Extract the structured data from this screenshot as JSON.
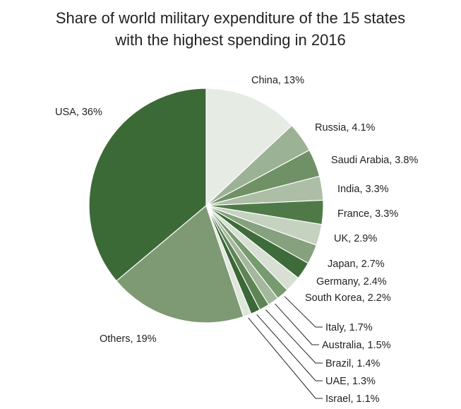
{
  "chart_data": {
    "type": "pie",
    "title": [
      "Share of world military expenditure of the 15 states",
      "with the highest spending in 2016"
    ],
    "slices": [
      {
        "label": "China, 13%",
        "name": "China",
        "value": 13,
        "color": "#e6ebe3"
      },
      {
        "label": "Russia, 4.1%",
        "name": "Russia",
        "value": 4.1,
        "color": "#9cb294"
      },
      {
        "label": "Saudi Arabia, 3.8%",
        "name": "Saudi Arabia",
        "value": 3.8,
        "color": "#6f9165"
      },
      {
        "label": "India, 3.3%",
        "name": "India",
        "value": 3.3,
        "color": "#acbea5"
      },
      {
        "label": "France, 3.3%",
        "name": "France",
        "value": 3.3,
        "color": "#4f7a48"
      },
      {
        "label": "UK, 2.9%",
        "name": "UK",
        "value": 2.9,
        "color": "#c5d2c0"
      },
      {
        "label": "Japan, 2.7%",
        "name": "Japan",
        "value": 2.7,
        "color": "#86a17d"
      },
      {
        "label": "Germany, 2.4%",
        "name": "Germany",
        "value": 2.4,
        "color": "#3d6b39"
      },
      {
        "label": "South Korea, 2.2%",
        "name": "South Korea",
        "value": 2.2,
        "color": "#d7e0d3"
      },
      {
        "label": "Italy, 1.7%",
        "name": "Italy",
        "value": 1.7,
        "color": "#779a6e"
      },
      {
        "label": "Australia, 1.5%",
        "name": "Australia",
        "value": 1.5,
        "color": "#a4b89c"
      },
      {
        "label": "Brazil, 1.4%",
        "name": "Brazil",
        "value": 1.4,
        "color": "#5e8556"
      },
      {
        "label": "UAE, 1.3%",
        "name": "UAE",
        "value": 1.3,
        "color": "#3a6837"
      },
      {
        "label": "Israel, 1.1%",
        "name": "Israel",
        "value": 1.1,
        "color": "#dfe6db"
      },
      {
        "label": "Others, 19%",
        "name": "Others",
        "value": 19,
        "color": "#7e9a74"
      },
      {
        "label": "USA, 36%",
        "name": "USA",
        "value": 36,
        "color": "#3c6a36"
      }
    ],
    "start_angle_deg": 0,
    "direction": "clockwise",
    "label_line_color": "#222222"
  }
}
